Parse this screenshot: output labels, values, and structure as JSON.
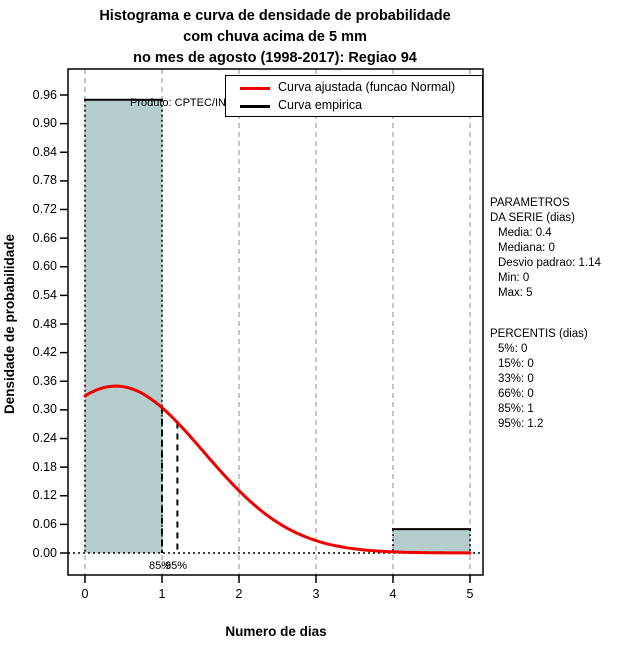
{
  "title": {
    "line1": "Histograma e curva de densidade de probabilidade",
    "line2": "com chuva acima de 5 mm",
    "line3": "no mes de agosto (1998-2017): Regiao 94"
  },
  "watermark": "Produto: CPTEC/INPE",
  "axes": {
    "x_label": "Numero de dias",
    "y_label": "Densidade de probabilidade",
    "x_ticks": [
      "0",
      "1",
      "2",
      "3",
      "4",
      "5"
    ],
    "y_ticks": [
      "0.00",
      "0.06",
      "0.12",
      "0.18",
      "0.24",
      "0.30",
      "0.36",
      "0.42",
      "0.48",
      "0.54",
      "0.60",
      "0.66",
      "0.72",
      "0.78",
      "0.84",
      "0.90",
      "0.96"
    ]
  },
  "legend": {
    "items": [
      {
        "label": "Curva ajustada (funcao Normal)",
        "color": "#ee0000"
      },
      {
        "label": "Curva empirica",
        "color": "#000000"
      }
    ]
  },
  "side_panel": {
    "params_title_line1": "PARAMETROS",
    "params_title_line2": "DA SERIE (dias)",
    "params": [
      "Media: 0.4",
      "Mediana: 0",
      "Desvio padrao: 1.14",
      "Min: 0",
      "Max: 5"
    ],
    "percentis_title": "PERCENTIS (dias)",
    "percentis": [
      "5%: 0",
      "15%: 0",
      "33%: 0",
      "66%: 0",
      "85%: 1",
      "95%: 1.2"
    ]
  },
  "percentile_markers": [
    {
      "label": "85%",
      "x": 1
    },
    {
      "label": "95%",
      "x": 1.2
    }
  ],
  "chart_data": {
    "type": "bar",
    "subtype": "histogram-with-density-curve",
    "title": "Histograma e curva de densidade de probabilidade com chuva acima de 5 mm no mes de agosto (1998-2017): Regiao 94",
    "xlabel": "Numero de dias",
    "ylabel": "Densidade de probabilidade",
    "xlim": [
      0,
      5
    ],
    "ylim": [
      0,
      0.96
    ],
    "y_tick_step": 0.06,
    "grid": "vertical-dashed-at-integer-breaks",
    "legend_position": "top-right-inside",
    "bars": [
      {
        "x0": 0,
        "x1": 1,
        "density": 0.95
      },
      {
        "x0": 4,
        "x1": 5,
        "density": 0.05
      }
    ],
    "bar_fill_color": "#b4cdcd",
    "empirical_step_color": "#000000",
    "fitted_normal": {
      "mean": 0.4,
      "sd": 1.14,
      "peak_density": 0.35,
      "color": "#ee0000"
    },
    "percentile_lines": [
      {
        "percent": 85,
        "x": 1
      },
      {
        "percent": 95,
        "x": 1.2
      }
    ],
    "series_stats": {
      "media": 0.4,
      "mediana": 0,
      "desvio_padrao": 1.14,
      "min": 0,
      "max": 5
    },
    "percentis": {
      "5": 0,
      "15": 0,
      "33": 0,
      "66": 0,
      "85": 1,
      "95": 1.2
    }
  }
}
